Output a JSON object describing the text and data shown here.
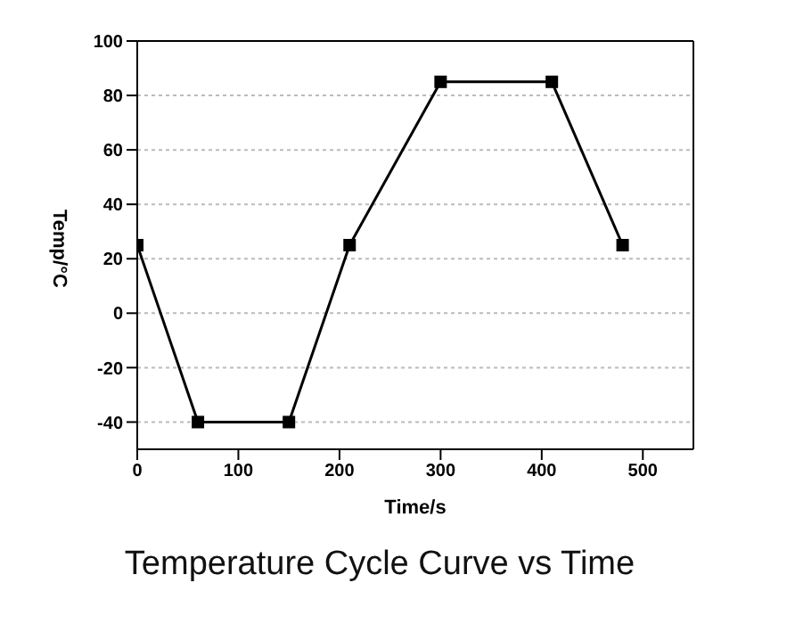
{
  "chart_data": {
    "type": "line",
    "title": "Temperature Cycle Curve vs Time",
    "xlabel": "Time/s",
    "ylabel": "Temp/°C",
    "x": [
      0,
      60,
      150,
      210,
      300,
      410,
      480
    ],
    "series": [
      {
        "color": "#000000",
        "values": [
          25,
          -40,
          -40,
          25,
          85,
          85,
          25
        ]
      }
    ],
    "xlim": [
      0,
      550
    ],
    "xticks": [
      0,
      100,
      200,
      300,
      400,
      500
    ],
    "ylim": [
      -50,
      100
    ],
    "yticks": [
      -40,
      -20,
      0,
      20,
      40,
      60,
      80,
      100
    ],
    "grid": "y",
    "marker": "square",
    "line_style": "solid"
  }
}
